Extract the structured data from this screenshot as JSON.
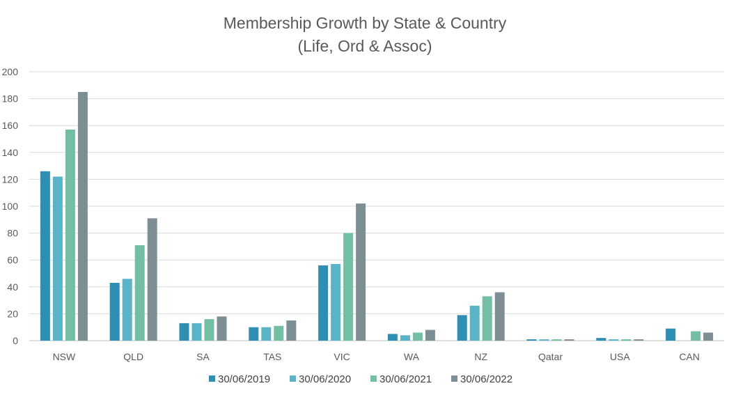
{
  "chart_data": {
    "type": "bar",
    "title": "Membership Growth  by State & Country",
    "subtitle": "(Life, Ord & Assoc)",
    "xlabel": "",
    "ylabel": "",
    "ylim": [
      0,
      200
    ],
    "yticks": [
      "0",
      "20",
      "40",
      "60",
      "80",
      "100",
      "120",
      "140",
      "160",
      "180",
      "200"
    ],
    "grid": true,
    "legend_position": "bottom",
    "categories": [
      "NSW",
      "QLD",
      "SA",
      "TAS",
      "VIC",
      "WA",
      "NZ",
      "Qatar",
      "USA",
      "CAN"
    ],
    "series": [
      {
        "name": "30/06/2019",
        "color": "#2e8fb5",
        "values": [
          126,
          43,
          13,
          10,
          56,
          5,
          19,
          1,
          2,
          9
        ]
      },
      {
        "name": "30/06/2020",
        "color": "#5ab4c8",
        "values": [
          122,
          46,
          13,
          10,
          57,
          4,
          26,
          1,
          1,
          0
        ]
      },
      {
        "name": "30/06/2021",
        "color": "#72bfa4",
        "values": [
          157,
          71,
          16,
          11,
          80,
          6,
          33,
          1,
          1,
          7
        ]
      },
      {
        "name": "30/06/2022",
        "color": "#7d8f94",
        "values": [
          185,
          91,
          18,
          15,
          102,
          8,
          36,
          1,
          1,
          6
        ]
      }
    ]
  }
}
